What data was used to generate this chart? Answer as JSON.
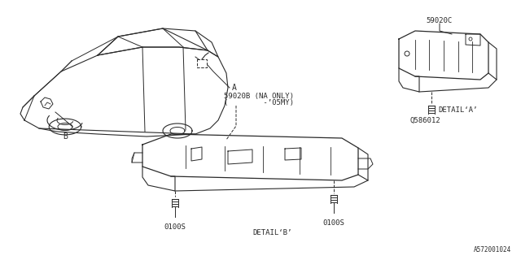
{
  "bg_color": "#ffffff",
  "diagram_id": "A572001024",
  "lc": "#2a2a2a",
  "tc": "#2a2a2a",
  "parts": {
    "A": "A",
    "B": "B",
    "59020B_line1": "59020B (NA ONLY)",
    "59020B_line2": "(        -’05MY)",
    "59020C": "59020C",
    "Q586012": "Q586012",
    "detailA": "DETAIL‘A’",
    "detailB": "DETAIL‘B’",
    "0100S": "0100S"
  }
}
